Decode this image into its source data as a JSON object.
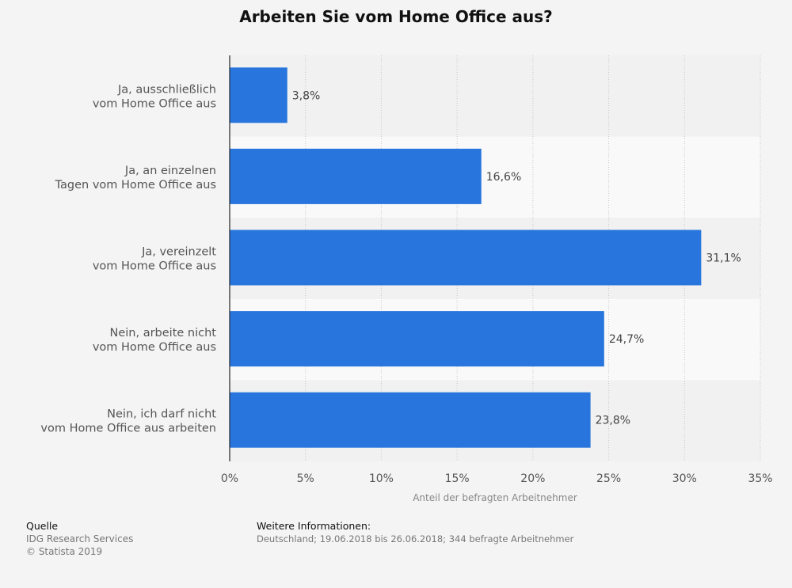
{
  "chart_data": {
    "type": "bar",
    "orientation": "horizontal",
    "title": "Arbeiten Sie vom Home Office aus?",
    "categories": [
      [
        "Ja, ausschließlich",
        "vom Home Office aus"
      ],
      [
        "Ja, an einzelnen",
        "Tagen vom Home Office aus"
      ],
      [
        "Ja, vereinzelt",
        "vom Home Office aus"
      ],
      [
        "Nein, arbeite nicht",
        "vom Home Office aus"
      ],
      [
        "Nein, ich darf nicht",
        "vom Home Office aus arbeiten"
      ]
    ],
    "values": [
      3.8,
      16.6,
      31.1,
      24.7,
      23.8
    ],
    "value_labels": [
      "3,8%",
      "16,6%",
      "31,1%",
      "24,7%",
      "23,8%"
    ],
    "xlabel": "Anteil der befragten Arbeitnehmer",
    "xlim": [
      0,
      35
    ],
    "xticks": [
      0,
      5,
      10,
      15,
      20,
      25,
      30,
      35
    ],
    "xtick_labels": [
      "0%",
      "5%",
      "10%",
      "15%",
      "20%",
      "25%",
      "30%",
      "35%"
    ],
    "grid": "vertical dotted",
    "bar_color": "#2876dd"
  },
  "footer": {
    "source_heading": "Quelle",
    "source_lines": [
      "IDG Research Services",
      "© Statista 2019"
    ],
    "info_heading": "Weitere Informationen:",
    "info_text": "Deutschland; 19.06.2018 bis 26.06.2018; 344 befragte Arbeitnehmer"
  }
}
